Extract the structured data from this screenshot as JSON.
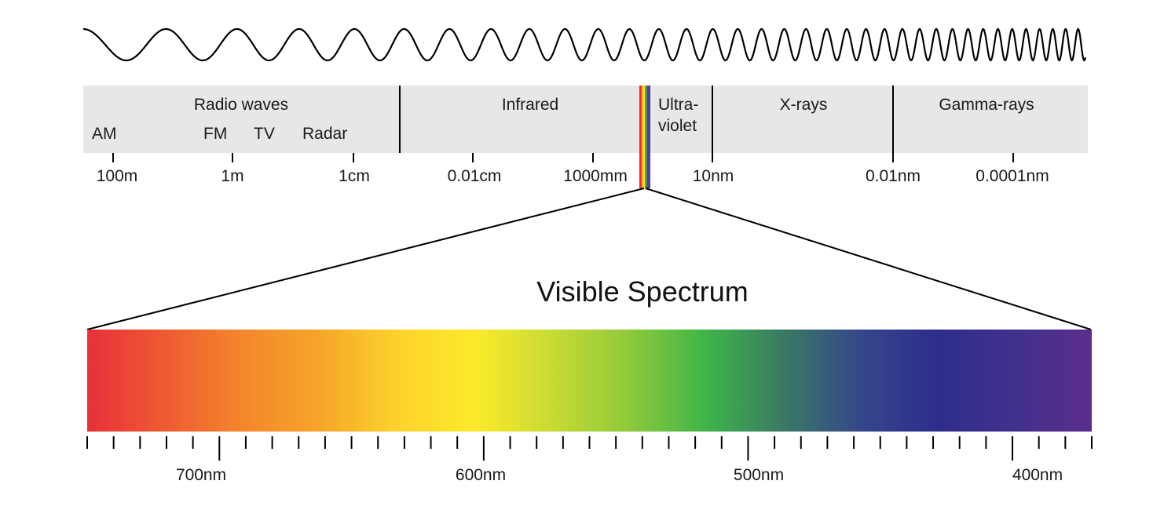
{
  "bands": [
    {
      "key": "radio",
      "label": "Radio waves"
    },
    {
      "key": "infrared",
      "label": "Infrared"
    },
    {
      "key": "uv",
      "label_line1": "Ultra-",
      "label_line2": "violet"
    },
    {
      "key": "xray",
      "label": "X-rays"
    },
    {
      "key": "gamma",
      "label": "Gamma-rays"
    }
  ],
  "radio_sublabels": [
    "AM",
    "FM",
    "TV",
    "Radar"
  ],
  "wavelength_ticks": [
    "100m",
    "1m",
    "1cm",
    "0.01cm",
    "1000mm",
    "10nm",
    "0.01nm",
    "0.0001nm"
  ],
  "visible": {
    "title": "Visible Spectrum",
    "range_nm": [
      750,
      370
    ],
    "major_ticks": [
      700,
      600,
      500,
      400
    ],
    "minor_tick_step_nm": 20,
    "tick_labels": [
      "700nm",
      "600nm",
      "500nm",
      "400nm"
    ],
    "gradient_colors": [
      "#e8303a",
      "#ee5a32",
      "#f4862c",
      "#f6a52a",
      "#fbd22c",
      "#fdea2a",
      "#c8db34",
      "#8fc93b",
      "#3fb548",
      "#3a7a64",
      "#35478a",
      "#2e2d8c",
      "#41318c",
      "#5b2d8c"
    ]
  },
  "colors": {
    "band_background": "#e6e7e8",
    "line": "#000000",
    "rainbow_strip": [
      "#e32d2d",
      "#f7941d",
      "#ffe11a",
      "#3bb44a",
      "#2f51a3",
      "#6d2e91"
    ]
  }
}
